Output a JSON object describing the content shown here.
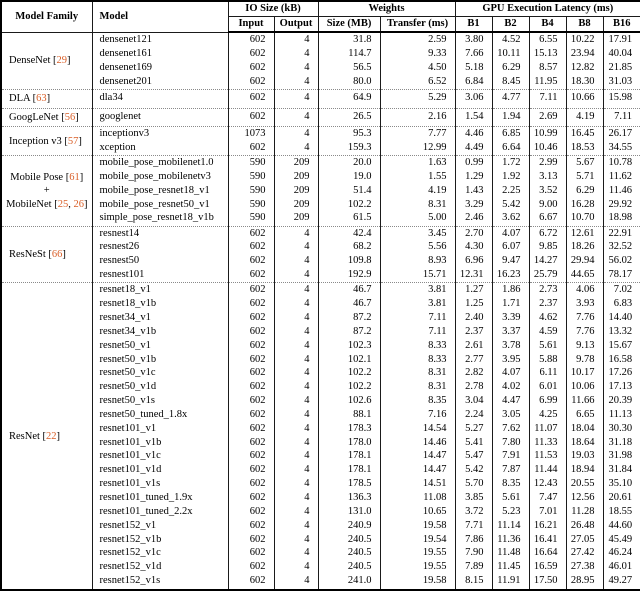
{
  "colors": {
    "citation_color": "#d95f28"
  },
  "table": {
    "headers": {
      "model_family": "Model Family",
      "model": "Model",
      "io_size": "IO Size (kB)",
      "input": "Input",
      "output": "Output",
      "weights": "Weights",
      "size_mb": "Size (MB)",
      "transfer_ms": "Transfer (ms)",
      "gpu_latency": "GPU Execution Latency (ms)",
      "batch_cols": [
        "B1",
        "B2",
        "B4",
        "B8",
        "B16"
      ]
    },
    "row_fields": [
      "model",
      "input",
      "output",
      "size",
      "transfer",
      "b1",
      "b2",
      "b4",
      "b8",
      "b16"
    ],
    "groups": [
      {
        "family_lines": [
          {
            "prefix": "DenseNet ",
            "cites": [
              "29"
            ]
          }
        ],
        "rows": [
          [
            "densenet121",
            "602",
            "4",
            "31.8",
            "2.59",
            "3.80",
            "4.52",
            "6.55",
            "10.22",
            "17.91"
          ],
          [
            "densenet161",
            "602",
            "4",
            "114.7",
            "9.33",
            "7.66",
            "10.11",
            "15.13",
            "23.94",
            "40.04"
          ],
          [
            "densenet169",
            "602",
            "4",
            "56.5",
            "4.50",
            "5.18",
            "6.29",
            "8.57",
            "12.82",
            "21.85"
          ],
          [
            "densenet201",
            "602",
            "4",
            "80.0",
            "6.52",
            "6.84",
            "8.45",
            "11.95",
            "18.30",
            "31.03"
          ]
        ]
      },
      {
        "family_lines": [
          {
            "prefix": "DLA ",
            "cites": [
              "63"
            ]
          }
        ],
        "rows": [
          [
            "dla34",
            "602",
            "4",
            "64.9",
            "5.29",
            "3.06",
            "4.77",
            "7.11",
            "10.66",
            "15.98"
          ]
        ]
      },
      {
        "family_lines": [
          {
            "prefix": "GoogLeNet ",
            "cites": [
              "56"
            ]
          }
        ],
        "rows": [
          [
            "googlenet",
            "602",
            "4",
            "26.5",
            "2.16",
            "1.54",
            "1.94",
            "2.69",
            "4.19",
            "7.11"
          ]
        ]
      },
      {
        "family_lines": [
          {
            "prefix": "Inception v3 ",
            "cites": [
              "57"
            ]
          }
        ],
        "rows": [
          [
            "inceptionv3",
            "1073",
            "4",
            "95.3",
            "7.77",
            "4.46",
            "6.85",
            "10.99",
            "16.45",
            "26.17"
          ],
          [
            "xception",
            "602",
            "4",
            "159.3",
            "12.99",
            "4.49",
            "6.64",
            "10.46",
            "18.53",
            "34.55"
          ]
        ]
      },
      {
        "family_lines": [
          {
            "prefix": "Mobile Pose ",
            "cites": [
              "61"
            ]
          },
          {
            "prefix": "+",
            "cites": []
          },
          {
            "prefix": "MobileNet ",
            "cites": [
              "25",
              "26"
            ]
          }
        ],
        "rows": [
          [
            "mobile_pose_mobilenet1.0",
            "590",
            "209",
            "20.0",
            "1.63",
            "0.99",
            "1.72",
            "2.99",
            "5.67",
            "10.78"
          ],
          [
            "mobile_pose_mobilenetv3",
            "590",
            "209",
            "19.0",
            "1.55",
            "1.29",
            "1.92",
            "3.13",
            "5.71",
            "11.62"
          ],
          [
            "mobile_pose_resnet18_v1",
            "590",
            "209",
            "51.4",
            "4.19",
            "1.43",
            "2.25",
            "3.52",
            "6.29",
            "11.46"
          ],
          [
            "mobile_pose_resnet50_v1",
            "590",
            "209",
            "102.2",
            "8.31",
            "3.29",
            "5.42",
            "9.00",
            "16.28",
            "29.92"
          ],
          [
            "simple_pose_resnet18_v1b",
            "590",
            "209",
            "61.5",
            "5.00",
            "2.46",
            "3.62",
            "6.67",
            "10.70",
            "18.98"
          ]
        ]
      },
      {
        "family_lines": [
          {
            "prefix": "ResNeSt ",
            "cites": [
              "66"
            ]
          }
        ],
        "rows": [
          [
            "resnest14",
            "602",
            "4",
            "42.4",
            "3.45",
            "2.70",
            "4.07",
            "6.72",
            "12.61",
            "22.91"
          ],
          [
            "resnest26",
            "602",
            "4",
            "68.2",
            "5.56",
            "4.30",
            "6.07",
            "9.85",
            "18.26",
            "32.52"
          ],
          [
            "resnest50",
            "602",
            "4",
            "109.8",
            "8.93",
            "6.96",
            "9.47",
            "14.27",
            "29.94",
            "56.02"
          ],
          [
            "resnest101",
            "602",
            "4",
            "192.9",
            "15.71",
            "12.31",
            "16.23",
            "25.79",
            "44.65",
            "78.17"
          ]
        ]
      },
      {
        "family_lines": [
          {
            "prefix": "ResNet ",
            "cites": [
              "22"
            ]
          }
        ],
        "rows": [
          [
            "resnet18_v1",
            "602",
            "4",
            "46.7",
            "3.81",
            "1.27",
            "1.86",
            "2.73",
            "4.06",
            "7.02"
          ],
          [
            "resnet18_v1b",
            "602",
            "4",
            "46.7",
            "3.81",
            "1.25",
            "1.71",
            "2.37",
            "3.93",
            "6.83"
          ],
          [
            "resnet34_v1",
            "602",
            "4",
            "87.2",
            "7.11",
            "2.40",
            "3.39",
            "4.62",
            "7.76",
            "14.40"
          ],
          [
            "resnet34_v1b",
            "602",
            "4",
            "87.2",
            "7.11",
            "2.37",
            "3.37",
            "4.59",
            "7.76",
            "13.32"
          ],
          [
            "resnet50_v1",
            "602",
            "4",
            "102.3",
            "8.33",
            "2.61",
            "3.78",
            "5.61",
            "9.13",
            "15.67"
          ],
          [
            "resnet50_v1b",
            "602",
            "4",
            "102.1",
            "8.33",
            "2.77",
            "3.95",
            "5.88",
            "9.78",
            "16.58"
          ],
          [
            "resnet50_v1c",
            "602",
            "4",
            "102.2",
            "8.31",
            "2.82",
            "4.07",
            "6.11",
            "10.17",
            "17.26"
          ],
          [
            "resnet50_v1d",
            "602",
            "4",
            "102.2",
            "8.31",
            "2.78",
            "4.02",
            "6.01",
            "10.06",
            "17.13"
          ],
          [
            "resnet50_v1s",
            "602",
            "4",
            "102.6",
            "8.35",
            "3.04",
            "4.47",
            "6.99",
            "11.66",
            "20.39"
          ],
          [
            "resnet50_tuned_1.8x",
            "602",
            "4",
            "88.1",
            "7.16",
            "2.24",
            "3.05",
            "4.25",
            "6.65",
            "11.13"
          ],
          [
            "resnet101_v1",
            "602",
            "4",
            "178.3",
            "14.54",
            "5.27",
            "7.62",
            "11.07",
            "18.04",
            "30.30"
          ],
          [
            "resnet101_v1b",
            "602",
            "4",
            "178.0",
            "14.46",
            "5.41",
            "7.80",
            "11.33",
            "18.64",
            "31.18"
          ],
          [
            "resnet101_v1c",
            "602",
            "4",
            "178.1",
            "14.47",
            "5.47",
            "7.91",
            "11.53",
            "19.03",
            "31.98"
          ],
          [
            "resnet101_v1d",
            "602",
            "4",
            "178.1",
            "14.47",
            "5.42",
            "7.87",
            "11.44",
            "18.94",
            "31.84"
          ],
          [
            "resnet101_v1s",
            "602",
            "4",
            "178.5",
            "14.51",
            "5.70",
            "8.35",
            "12.43",
            "20.55",
            "35.10"
          ],
          [
            "resnet101_tuned_1.9x",
            "602",
            "4",
            "136.3",
            "11.08",
            "3.85",
            "5.61",
            "7.47",
            "12.56",
            "20.61"
          ],
          [
            "resnet101_tuned_2.2x",
            "602",
            "4",
            "131.0",
            "10.65",
            "3.72",
            "5.23",
            "7.01",
            "11.28",
            "18.55"
          ],
          [
            "resnet152_v1",
            "602",
            "4",
            "240.9",
            "19.58",
            "7.71",
            "11.14",
            "16.21",
            "26.48",
            "44.60"
          ],
          [
            "resnet152_v1b",
            "602",
            "4",
            "240.5",
            "19.54",
            "7.86",
            "11.36",
            "16.41",
            "27.05",
            "45.49"
          ],
          [
            "resnet152_v1c",
            "602",
            "4",
            "240.5",
            "19.55",
            "7.90",
            "11.48",
            "16.64",
            "27.42",
            "46.24"
          ],
          [
            "resnet152_v1d",
            "602",
            "4",
            "240.5",
            "19.55",
            "7.89",
            "11.45",
            "16.59",
            "27.38",
            "46.01"
          ],
          [
            "resnet152_v1s",
            "602",
            "4",
            "241.0",
            "19.58",
            "8.15",
            "11.91",
            "17.50",
            "28.95",
            "49.27"
          ]
        ]
      }
    ]
  }
}
